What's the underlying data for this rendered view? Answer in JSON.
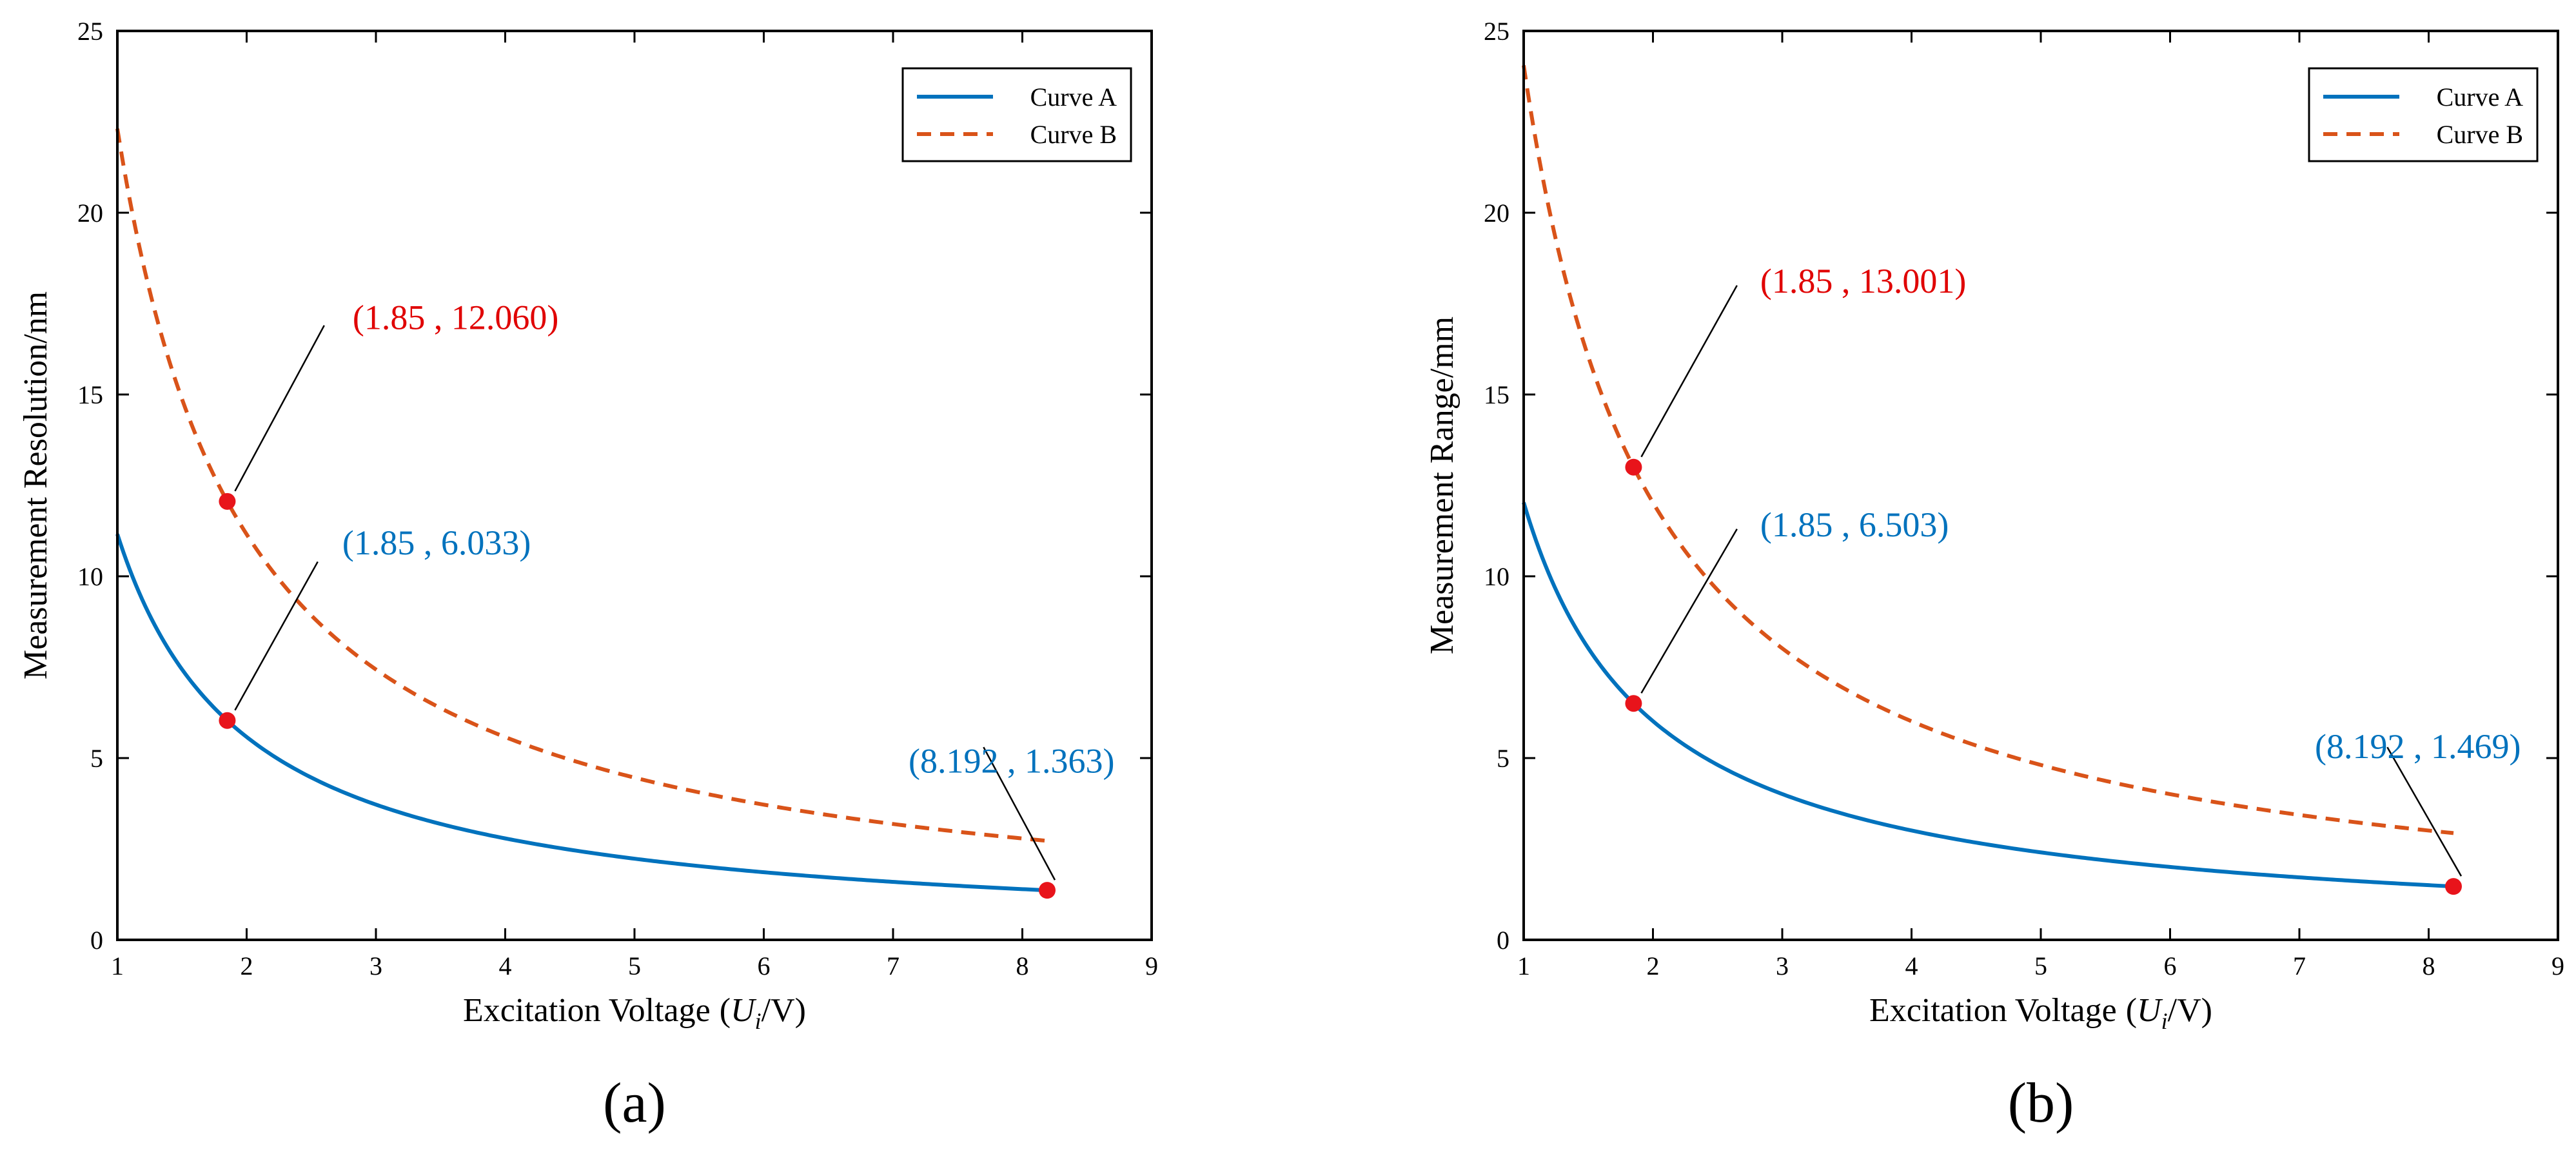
{
  "colors": {
    "curve_a": "#0072BD",
    "curve_b": "#D95319",
    "marker": "#E8141B",
    "annot_red": "#E00000",
    "annot_blue": "#0072BD",
    "axes": "#000000"
  },
  "chart_data": [
    {
      "type": "line",
      "panel_label": "(a)",
      "xlabel": {
        "prefix": "Excitation Voltage",
        "open": "(",
        "var": "U",
        "sub": "i",
        "slash": "/V",
        "close": ")"
      },
      "ylabel": "Measurement Resolution/nm",
      "xlim": [
        1,
        9
      ],
      "ylim": [
        0,
        25
      ],
      "xticks": [
        "1",
        "2",
        "3",
        "4",
        "5",
        "6",
        "7",
        "8",
        "9"
      ],
      "yticks": [
        "0",
        "5",
        "10",
        "15",
        "20",
        "25"
      ],
      "grid": false,
      "legend": {
        "position": "top-right",
        "entries": [
          "Curve A",
          "Curve B"
        ]
      },
      "series": [
        {
          "name": "Curve A",
          "style": "solid",
          "constant": 11.161,
          "x_start": 1,
          "x_end": 8.192
        },
        {
          "name": "Curve B",
          "style": "dashed",
          "constant": 22.311,
          "x_start": 1,
          "x_end": 8.192
        }
      ],
      "points": [
        {
          "x": 1.85,
          "y": 12.06,
          "label": "(1.85 , 12.060)",
          "color": "annot_red",
          "label_at": [
            2.82,
            16.8
          ],
          "line_to": [
            2.6,
            16.9
          ]
        },
        {
          "x": 1.85,
          "y": 6.033,
          "label": "(1.85 , 6.033)",
          "color": "annot_blue",
          "label_at": [
            2.74,
            10.6
          ],
          "line_to": [
            2.55,
            10.4
          ]
        },
        {
          "x": 8.192,
          "y": 1.363,
          "label": "(8.192 , 1.363)",
          "color": "annot_blue",
          "label_at": [
            7.12,
            4.6
          ],
          "line_to": [
            7.7,
            5.3
          ]
        }
      ]
    },
    {
      "type": "line",
      "panel_label": "(b)",
      "xlabel": {
        "prefix": "Excitation Voltage",
        "open": "(",
        "var": "U",
        "sub": "i",
        "slash": "/V",
        "close": ")"
      },
      "ylabel": "Measurement Range/mm",
      "xlim": [
        1,
        9
      ],
      "ylim": [
        0,
        25
      ],
      "xticks": [
        "1",
        "2",
        "3",
        "4",
        "5",
        "6",
        "7",
        "8",
        "9"
      ],
      "yticks": [
        "0",
        "5",
        "10",
        "15",
        "20",
        "25"
      ],
      "grid": false,
      "legend": {
        "position": "top-right",
        "entries": [
          "Curve A",
          "Curve B"
        ]
      },
      "series": [
        {
          "name": "Curve A",
          "style": "solid",
          "constant": 12.031,
          "x_start": 1,
          "x_end": 8.192
        },
        {
          "name": "Curve B",
          "style": "dashed",
          "constant": 24.052,
          "x_start": 1,
          "x_end": 8.192
        }
      ],
      "points": [
        {
          "x": 1.85,
          "y": 13.001,
          "label": "(1.85 , 13.001)",
          "color": "annot_red",
          "label_at": [
            2.83,
            17.8
          ],
          "line_to": [
            2.65,
            18.0
          ]
        },
        {
          "x": 1.85,
          "y": 6.503,
          "label": "(1.85 , 6.503)",
          "color": "annot_blue",
          "label_at": [
            2.83,
            11.1
          ],
          "line_to": [
            2.65,
            11.3
          ]
        },
        {
          "x": 8.192,
          "y": 1.469,
          "label": "(8.192 , 1.469)",
          "color": "annot_blue",
          "label_at": [
            7.12,
            5.0
          ],
          "line_to": [
            7.68,
            5.3
          ]
        }
      ]
    }
  ]
}
